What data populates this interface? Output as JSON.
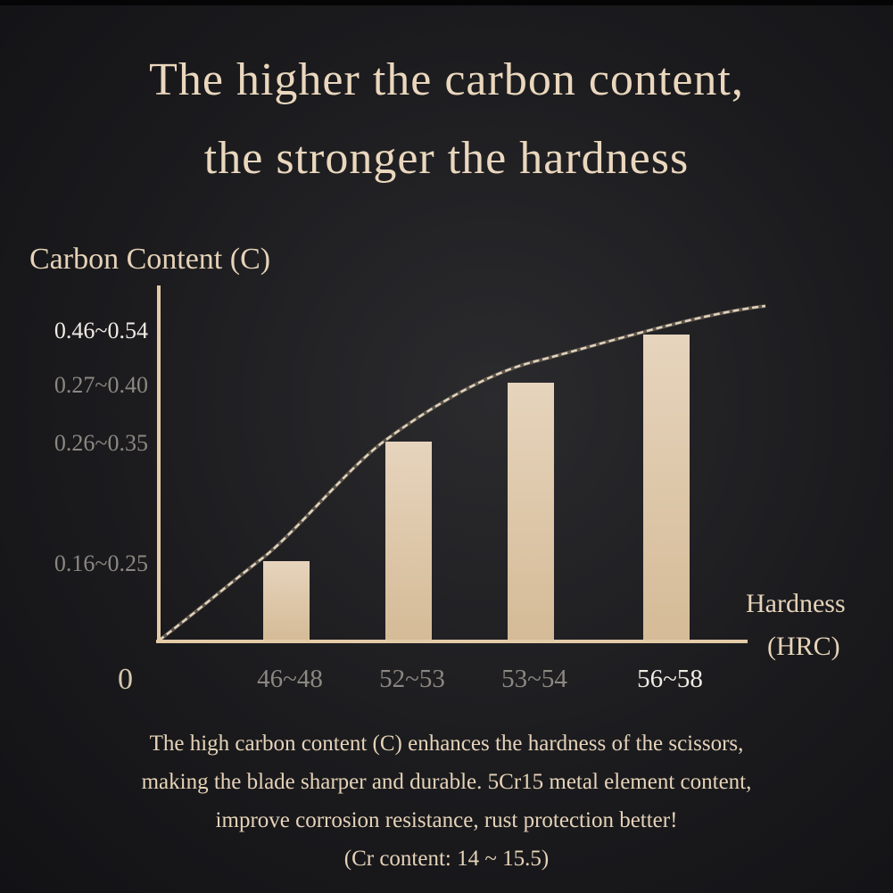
{
  "title": [
    "The higher the carbon content,",
    "the stronger the hardness"
  ],
  "chart_data": {
    "type": "bar",
    "ylabel": "Carbon Content (C)",
    "xlabel": [
      "Hardness",
      "(HRC)"
    ],
    "origin_label": "0",
    "categories": [
      "46~48",
      "52~53",
      "53~54",
      "56~58"
    ],
    "y_tick_labels": [
      "0.16~0.25",
      "0.26~0.35",
      "0.27~0.40",
      "0.46~0.54"
    ],
    "values": [
      "0.16~0.25",
      "0.26~0.35",
      "0.27~0.40",
      "0.46~0.54"
    ],
    "trend_line": "dashed",
    "grid": false,
    "colors": {
      "bar": "#dcc4a3",
      "axis": "#e3cba8",
      "trend": "#d8c7ae",
      "tick_label": "#8c8781",
      "highlight_label": "#f0ebe4"
    }
  },
  "footer": [
    "The high carbon content (C) enhances the hardness of the scissors,",
    "making the blade sharper and durable. 5Cr15 metal element content,",
    "improve corrosion resistance, rust protection better!",
    "(Cr content: 14 ~ 15.5)"
  ]
}
